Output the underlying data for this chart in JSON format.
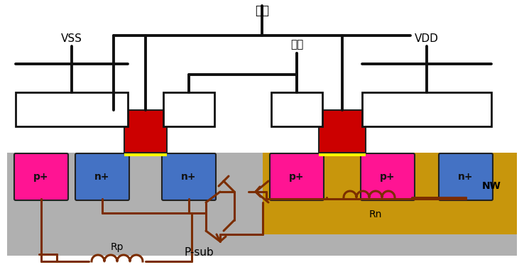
{
  "title": "",
  "bg_color": "#ffffff",
  "psub_color": "#b0b0b0",
  "nwell_color": "#c8960c",
  "pplus_color": "#ff1493",
  "nplus_color": "#4472c4",
  "gate_red_color": "#cc0000",
  "gate_yellow_color": "#ffff00",
  "wire_color": "#7b2d00",
  "text_color": "#000000",
  "label_input": "输入",
  "label_output": "输出",
  "label_vss": "VSS",
  "label_vdd": "VDD",
  "label_psub": "P-sub",
  "label_nw": "NW",
  "label_rp": "Rp",
  "label_rn": "Rn",
  "label_p1": "p+",
  "label_n1": "n+",
  "label_n2": "n+",
  "label_p2": "p+",
  "label_p3": "p+",
  "label_n3": "n+"
}
